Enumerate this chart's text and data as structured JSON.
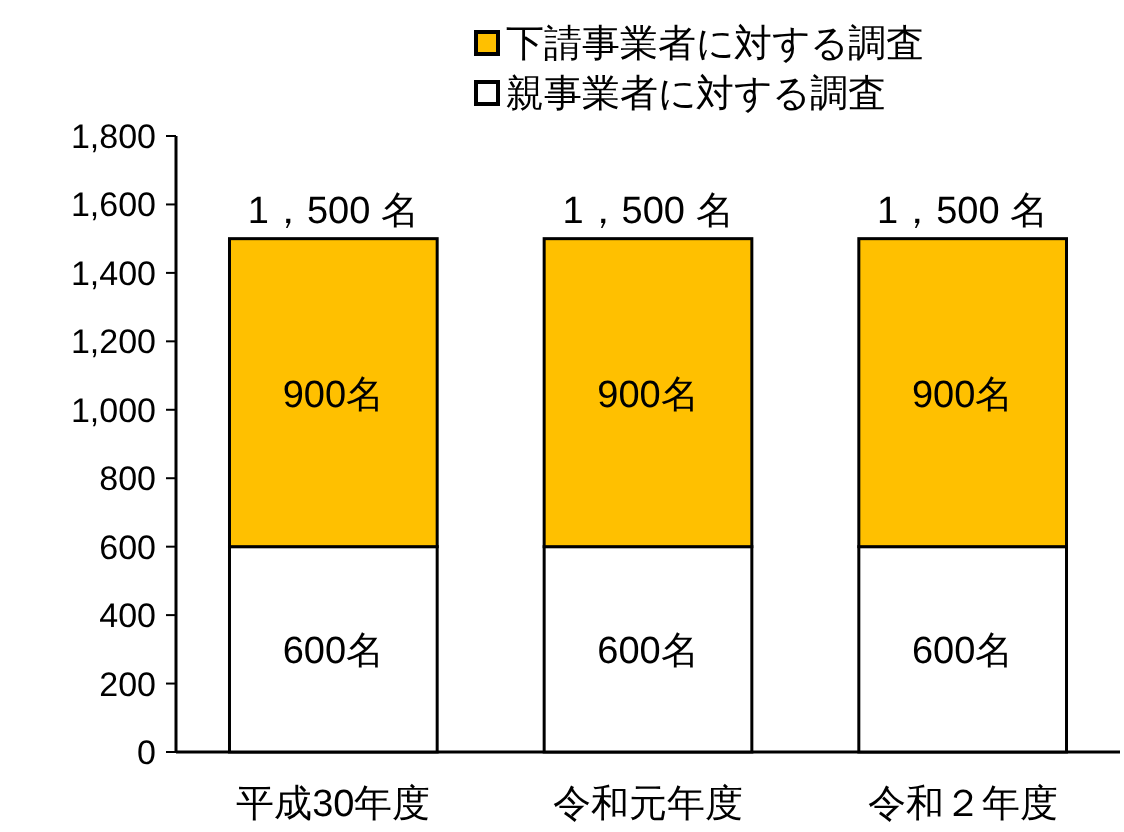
{
  "chart_data": {
    "type": "bar",
    "stacked": true,
    "categories": [
      "平成30年度",
      "令和元年度",
      "令和２年度"
    ],
    "series": [
      {
        "name": "親事業者に対する調査",
        "color": "#ffffff",
        "values": [
          600,
          600,
          600
        ],
        "value_labels": [
          "600名",
          "600名",
          "600名"
        ]
      },
      {
        "name": "下請事業者に対する調査",
        "color": "#ffc000",
        "values": [
          900,
          900,
          900
        ],
        "value_labels": [
          "900名",
          "900名",
          "900名"
        ]
      }
    ],
    "totals": [
      "1，500 名",
      "1，500 名",
      "1，500 名"
    ],
    "ylim": [
      0,
      1800
    ],
    "yticks": [
      {
        "value": 0,
        "label": "0"
      },
      {
        "value": 200,
        "label": "200"
      },
      {
        "value": 400,
        "label": "400"
      },
      {
        "value": 600,
        "label": "600"
      },
      {
        "value": 800,
        "label": "800"
      },
      {
        "value": 1000,
        "label": "1,000"
      },
      {
        "value": 1200,
        "label": "1,200"
      },
      {
        "value": 1400,
        "label": "1,400"
      },
      {
        "value": 1600,
        "label": "1,600"
      },
      {
        "value": 1800,
        "label": "1,800"
      }
    ],
    "legend": "top",
    "grid": false
  }
}
